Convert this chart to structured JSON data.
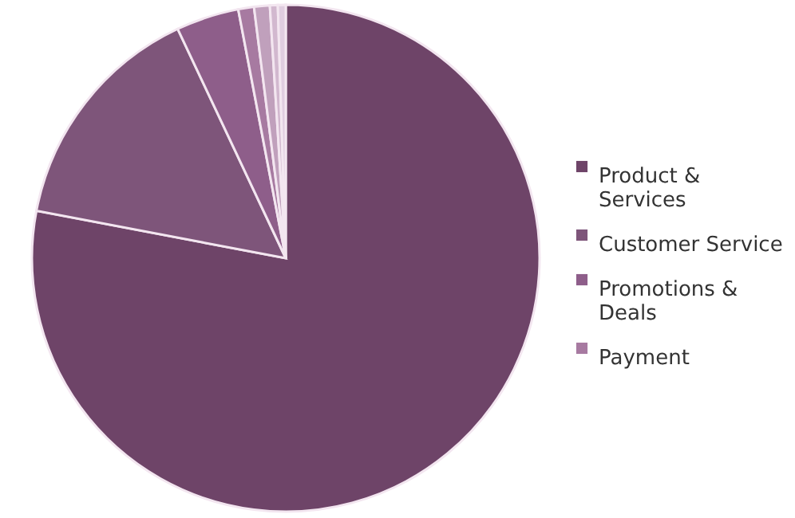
{
  "chart_data": {
    "type": "pie",
    "categories": [
      "Product & Services",
      "Customer Service",
      "Promotions & Deals",
      "Payment",
      null,
      null,
      null
    ],
    "values": [
      78,
      15,
      4,
      1,
      1,
      0.5,
      0.5
    ],
    "colors": [
      "#6e4468",
      "#7e557a",
      "#8e5e8a",
      "#a77aa1",
      "#c0a0bc",
      "#d2b8cf",
      "#e0cde0"
    ],
    "legend": "right"
  }
}
